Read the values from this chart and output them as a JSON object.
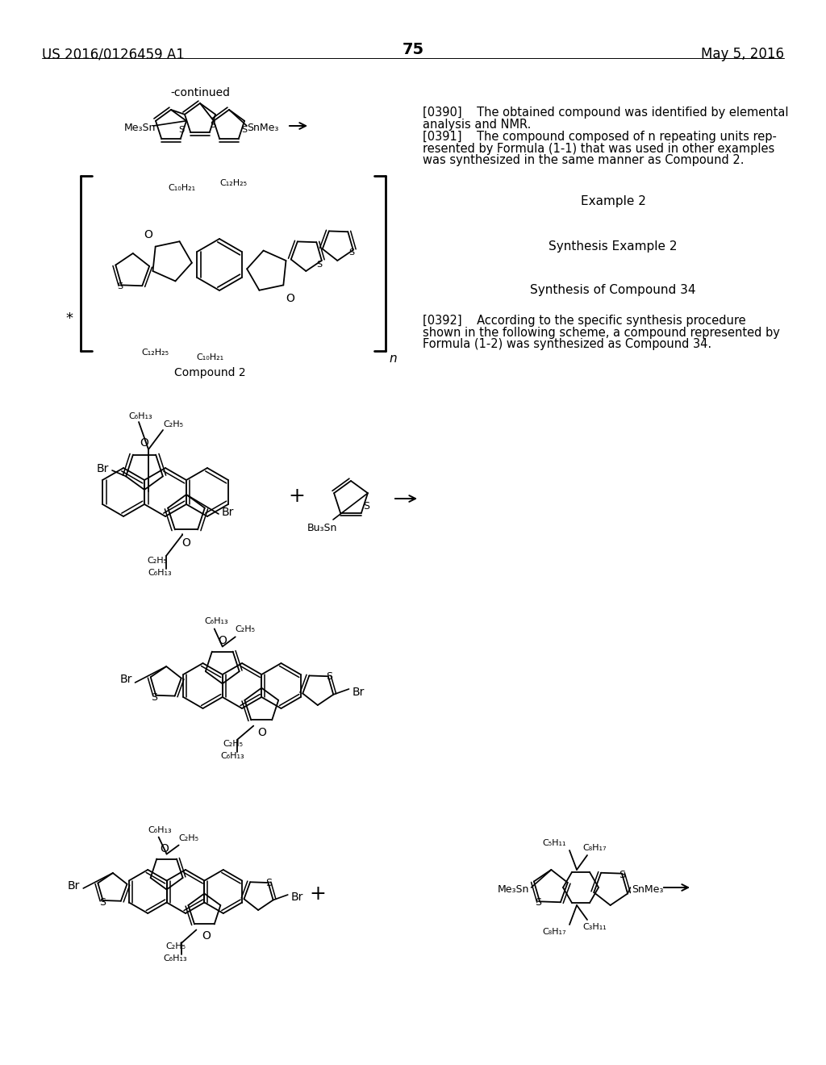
{
  "bg": "#ffffff",
  "header_left": "US 2016/0126459 A1",
  "header_right": "May 5, 2016",
  "header_center": "75",
  "para0390_line1": "[0390]    The obtained compound was identified by elemental",
  "para0390_line2": "analysis and NMR.",
  "para0391_line1": "[0391]    The compound composed of n repeating units rep-",
  "para0391_line2": "resented by Formula (1-1) that was used in other examples",
  "para0391_line3": "was synthesized in the same manner as Compound 2.",
  "example2": "Example 2",
  "synth_ex2": "Synthesis Example 2",
  "synth_cpd34": "Synthesis of Compound 34",
  "para0392_line1": "[0392]    According to the specific synthesis procedure",
  "para0392_line2": "shown in the following scheme, a compound represented by",
  "para0392_line3": "Formula (1-2) was synthesized as Compound 34.",
  "continued": "-continued",
  "compound2": "Compound 2"
}
